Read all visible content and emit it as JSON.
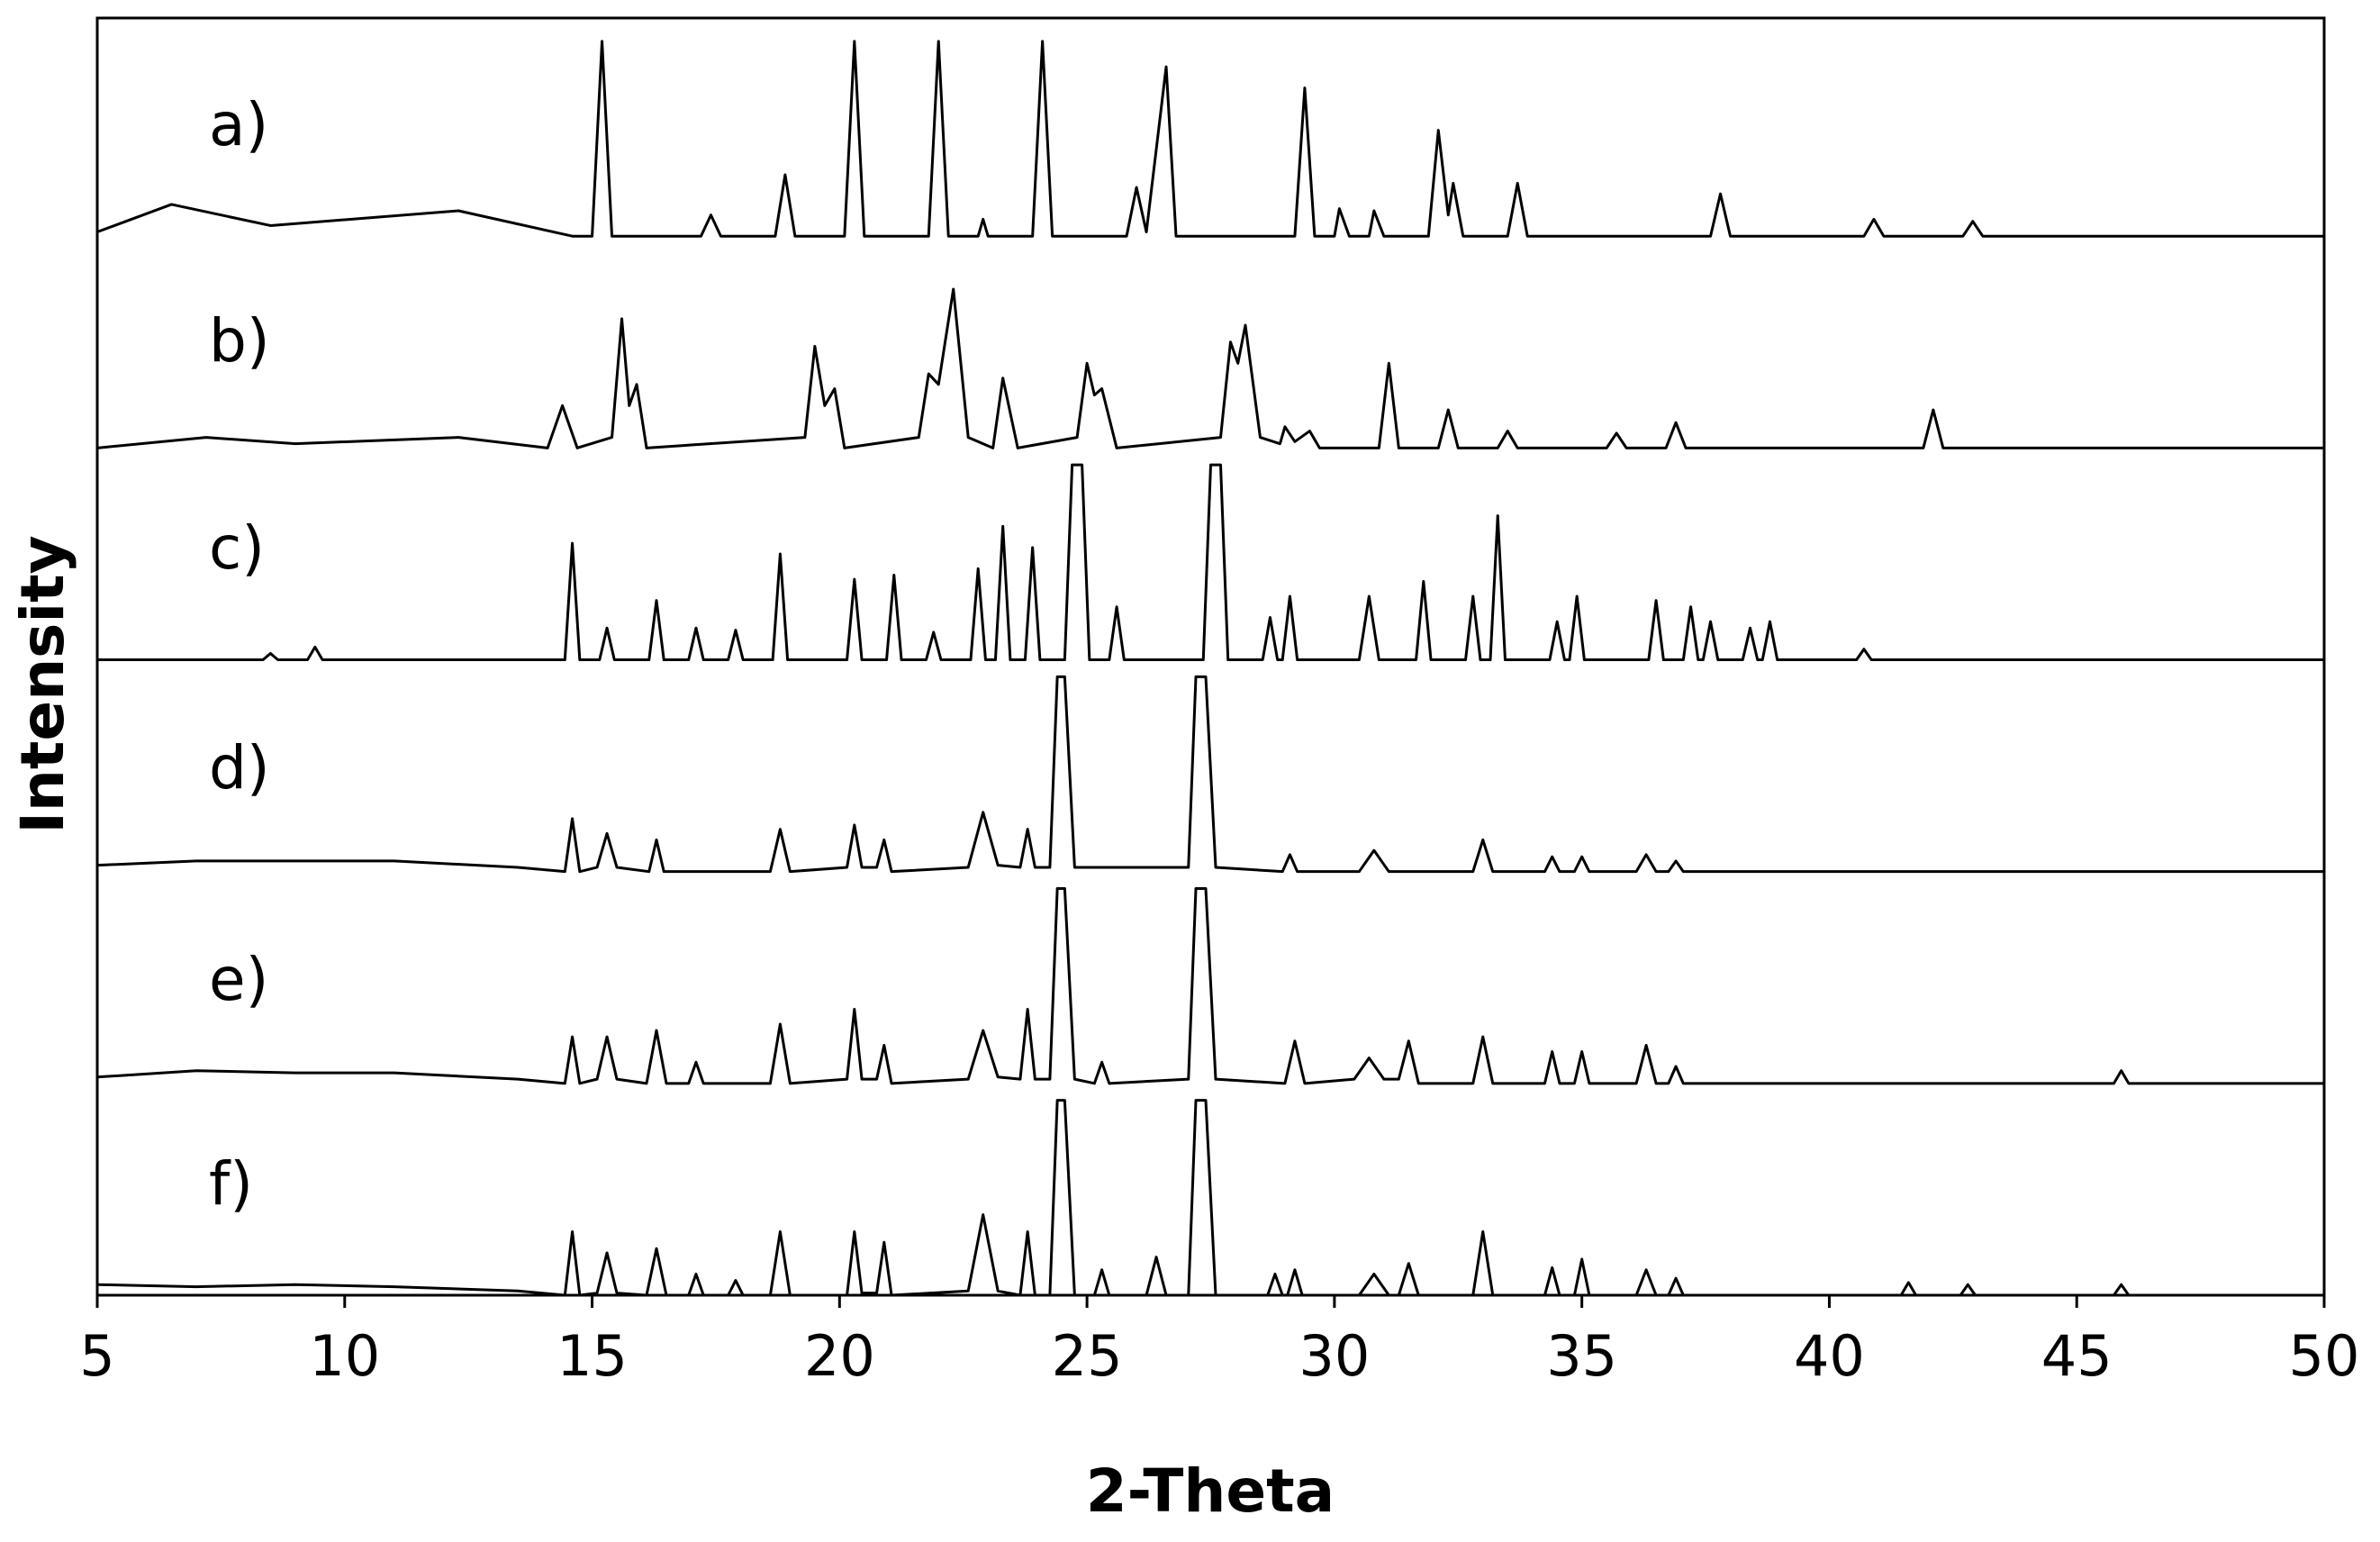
{
  "chart_data": {
    "type": "line",
    "x_label": "2-Theta",
    "y_label": "Intensity",
    "xlim": [
      5,
      50
    ],
    "xticks": [
      5,
      10,
      15,
      20,
      25,
      30,
      35,
      40,
      45,
      50
    ],
    "ylim": [
      0,
      6.03
    ],
    "series": [
      {
        "name": "a)",
        "color": "#000000",
        "x": [
          5,
          6.5,
          8.5,
          12.3,
          14.6,
          15.0,
          15.2,
          15.4,
          17.2,
          17.4,
          17.6,
          18.7,
          18.9,
          19.1,
          20.1,
          20.3,
          20.5,
          21.8,
          22.0,
          22.2,
          22.8,
          22.9,
          23.0,
          23.9,
          24.1,
          24.3,
          25.8,
          26.0,
          26.2,
          26.6,
          26.8,
          29.2,
          29.4,
          29.6,
          30.0,
          30.1,
          30.3,
          30.7,
          30.8,
          31.0,
          31.9,
          32.1,
          32.3,
          32.4,
          32.6,
          33.5,
          33.7,
          33.9,
          37.6,
          37.8,
          38.0,
          40.7,
          40.9,
          41.1,
          42.7,
          42.9,
          43.1,
          50
        ],
        "values": [
          5.02,
          5.15,
          5.05,
          5.12,
          5.0,
          5.0,
          5.92,
          5.0,
          5.0,
          5.1,
          5.0,
          5.0,
          5.29,
          5.0,
          5.0,
          5.92,
          5.0,
          5.0,
          5.92,
          5.0,
          5.0,
          5.08,
          5.0,
          5.0,
          5.92,
          5.0,
          5.0,
          5.23,
          5.02,
          5.8,
          5.0,
          5.0,
          5.7,
          5.0,
          5.0,
          5.13,
          5.0,
          5.0,
          5.12,
          5.0,
          5.0,
          5.5,
          5.1,
          5.25,
          5.0,
          5.0,
          5.25,
          5.0,
          5.0,
          5.2,
          5.0,
          5.0,
          5.08,
          5.0,
          5.0,
          5.07,
          5.0,
          5.0
        ]
      },
      {
        "name": "b)",
        "color": "#000000",
        "x": [
          5,
          7.2,
          9,
          12.3,
          14.1,
          14.4,
          14.7,
          15.4,
          15.6,
          15.75,
          15.9,
          16.1,
          19.3,
          19.5,
          19.7,
          19.9,
          20.1,
          21.6,
          21.8,
          22.0,
          22.3,
          22.6,
          23.1,
          23.3,
          23.6,
          24.8,
          25.0,
          25.15,
          25.3,
          25.6,
          27.7,
          27.9,
          28.05,
          28.2,
          28.5,
          28.9,
          29.0,
          29.2,
          29.5,
          29.7,
          30.9,
          31.1,
          31.3,
          32.1,
          32.3,
          32.5,
          33.3,
          33.5,
          33.7,
          35.5,
          35.7,
          35.9,
          36.7,
          36.9,
          37.1,
          41.9,
          42.1,
          42.3,
          50
        ],
        "values": [
          4.0,
          4.05,
          4.02,
          4.05,
          4.0,
          4.2,
          4.0,
          4.05,
          4.61,
          4.2,
          4.3,
          4.0,
          4.05,
          4.48,
          4.2,
          4.28,
          4.0,
          4.05,
          4.35,
          4.3,
          4.75,
          4.05,
          4.0,
          4.33,
          4.0,
          4.05,
          4.4,
          4.25,
          4.28,
          4.0,
          4.05,
          4.5,
          4.4,
          4.58,
          4.05,
          4.02,
          4.1,
          4.03,
          4.08,
          4.0,
          4.0,
          4.4,
          4.0,
          4.0,
          4.18,
          4.0,
          4.0,
          4.08,
          4.0,
          4.0,
          4.07,
          4.0,
          4.0,
          4.12,
          4.0,
          4.0,
          4.18,
          4.0,
          4.0
        ]
      },
      {
        "name": "c)",
        "color": "#000000",
        "x": [
          5,
          8.35,
          8.5,
          8.65,
          9.25,
          9.4,
          9.55,
          14.45,
          14.6,
          14.75,
          15.15,
          15.3,
          15.45,
          16.15,
          16.3,
          16.45,
          16.95,
          17.1,
          17.25,
          17.75,
          17.9,
          18.05,
          18.65,
          18.8,
          18.95,
          20.15,
          20.3,
          20.45,
          20.95,
          21.1,
          21.25,
          21.75,
          21.9,
          22.05,
          22.65,
          22.8,
          22.95,
          23.15,
          23.3,
          23.45,
          23.75,
          23.9,
          24.05,
          24.55,
          24.7,
          24.9,
          25.05,
          25.45,
          25.6,
          25.75,
          27.35,
          27.5,
          27.7,
          27.85,
          28.55,
          28.7,
          28.85,
          28.95,
          29.1,
          29.25,
          30.5,
          30.7,
          30.9,
          31.65,
          31.8,
          31.95,
          32.65,
          32.8,
          32.95,
          33.15,
          33.3,
          33.45,
          34.35,
          34.5,
          34.65,
          34.75,
          34.9,
          35.05,
          36.35,
          36.5,
          36.65,
          37.05,
          37.2,
          37.35,
          37.45,
          37.6,
          37.75,
          38.25,
          38.4,
          38.55,
          38.65,
          38.8,
          38.95,
          40.55,
          40.7,
          40.85,
          50
        ],
        "values": [
          3,
          3,
          3.03,
          3,
          3,
          3.06,
          3,
          3,
          3.55,
          3,
          3,
          3.15,
          3,
          3,
          3.28,
          3,
          3,
          3.15,
          3,
          3,
          3.14,
          3,
          3,
          3.5,
          3,
          3,
          3.38,
          3,
          3,
          3.4,
          3,
          3,
          3.13,
          3,
          3,
          3.43,
          3,
          3,
          3.63,
          3,
          3,
          3.53,
          3,
          3,
          3.92,
          3.92,
          3,
          3,
          3.25,
          3,
          3,
          3.92,
          3.92,
          3,
          3,
          3.2,
          3,
          3,
          3.3,
          3,
          3,
          3.3,
          3,
          3,
          3.37,
          3,
          3,
          3.3,
          3,
          3,
          3.68,
          3,
          3,
          3.18,
          3,
          3,
          3.3,
          3,
          3,
          3.28,
          3,
          3,
          3.25,
          3,
          3,
          3.18,
          3,
          3,
          3.15,
          3,
          3,
          3.18,
          3,
          3,
          3.05,
          3,
          3
        ]
      },
      {
        "name": "d)",
        "color": "#000000",
        "x": [
          5,
          7,
          9,
          11,
          13.5,
          14.45,
          14.6,
          14.75,
          15.1,
          15.3,
          15.5,
          16.15,
          16.3,
          16.45,
          18.6,
          18.8,
          19.0,
          20.15,
          20.3,
          20.45,
          20.75,
          20.9,
          21.05,
          22.6,
          22.9,
          23.2,
          23.65,
          23.8,
          23.95,
          24.25,
          24.4,
          24.55,
          24.75,
          27.05,
          27.2,
          27.4,
          27.6,
          28.95,
          29.1,
          29.25,
          30.5,
          30.8,
          31.1,
          32.8,
          33.0,
          33.2,
          34.25,
          34.4,
          34.55,
          34.85,
          35.0,
          35.15,
          36.1,
          36.3,
          36.5,
          36.75,
          36.9,
          37.05,
          50
        ],
        "values": [
          2.03,
          2.05,
          2.05,
          2.05,
          2.02,
          2,
          2.25,
          2,
          2.02,
          2.18,
          2.02,
          2,
          2.15,
          2,
          2,
          2.2,
          2,
          2.02,
          2.22,
          2.02,
          2.02,
          2.15,
          2,
          2.02,
          2.28,
          2.03,
          2.02,
          2.2,
          2.02,
          2.02,
          2.92,
          2.92,
          2.02,
          2.02,
          2.92,
          2.92,
          2.02,
          2,
          2.08,
          2,
          2,
          2.1,
          2,
          2,
          2.15,
          2,
          2,
          2.07,
          2,
          2,
          2.07,
          2,
          2,
          2.08,
          2,
          2,
          2.05,
          2,
          2
        ]
      },
      {
        "name": "e)",
        "color": "#000000",
        "x": [
          5,
          7,
          9,
          11,
          13.5,
          14.45,
          14.6,
          14.75,
          15.1,
          15.3,
          15.5,
          16.1,
          16.3,
          16.5,
          16.95,
          17.1,
          17.25,
          18.6,
          18.8,
          19.0,
          20.15,
          20.3,
          20.45,
          20.75,
          20.9,
          21.05,
          22.6,
          22.9,
          23.2,
          23.65,
          23.8,
          23.95,
          24.25,
          24.4,
          24.55,
          24.75,
          25.15,
          25.3,
          25.45,
          27.05,
          27.2,
          27.4,
          27.6,
          29.0,
          29.2,
          29.4,
          30.4,
          30.7,
          31.0,
          31.3,
          31.5,
          31.7,
          32.8,
          33.0,
          33.2,
          34.25,
          34.4,
          34.55,
          34.85,
          35.0,
          35.15,
          36.1,
          36.3,
          36.5,
          36.75,
          36.9,
          37.05,
          45.75,
          45.9,
          46.05,
          50
        ],
        "values": [
          1.03,
          1.06,
          1.05,
          1.05,
          1.02,
          1,
          1.22,
          1,
          1.02,
          1.22,
          1.02,
          1,
          1.25,
          1,
          1,
          1.1,
          1,
          1,
          1.28,
          1,
          1.02,
          1.35,
          1.02,
          1.02,
          1.18,
          1,
          1.02,
          1.25,
          1.03,
          1.02,
          1.35,
          1.02,
          1.02,
          1.92,
          1.92,
          1.02,
          1,
          1.1,
          1,
          1.02,
          1.92,
          1.92,
          1.02,
          1,
          1.2,
          1,
          1.02,
          1.12,
          1.02,
          1.02,
          1.2,
          1,
          1,
          1.22,
          1,
          1,
          1.15,
          1,
          1,
          1.15,
          1,
          1,
          1.18,
          1,
          1,
          1.08,
          1,
          1,
          1.06,
          1,
          1
        ]
      },
      {
        "name": "f)",
        "color": "#000000",
        "x": [
          5,
          7,
          9,
          11,
          13.5,
          14.45,
          14.6,
          14.75,
          15.1,
          15.3,
          15.5,
          16.1,
          16.3,
          16.5,
          16.95,
          17.1,
          17.25,
          17.75,
          17.9,
          18.05,
          18.6,
          18.8,
          19.0,
          20.15,
          20.3,
          20.45,
          20.75,
          20.9,
          21.05,
          22.6,
          22.9,
          23.2,
          23.65,
          23.8,
          23.95,
          24.25,
          24.4,
          24.55,
          24.75,
          25.15,
          25.3,
          25.45,
          26.2,
          26.4,
          26.6,
          27.05,
          27.2,
          27.4,
          27.6,
          28.65,
          28.8,
          28.95,
          29.05,
          29.2,
          29.35,
          30.5,
          30.8,
          31.1,
          31.3,
          31.5,
          31.7,
          32.8,
          33.0,
          33.2,
          34.25,
          34.4,
          34.55,
          34.85,
          35.0,
          35.15,
          36.1,
          36.3,
          36.5,
          36.75,
          36.9,
          37.05,
          41.45,
          41.6,
          41.75,
          42.65,
          42.8,
          42.95,
          45.75,
          45.9,
          46.05,
          50
        ],
        "values": [
          0.05,
          0.04,
          0.05,
          0.04,
          0.02,
          0,
          0.3,
          0,
          0.01,
          0.2,
          0.01,
          0,
          0.22,
          0,
          0,
          0.1,
          0,
          0,
          0.07,
          0,
          0,
          0.3,
          0,
          0,
          0.3,
          0.01,
          0.01,
          0.25,
          0,
          0.02,
          0.38,
          0.02,
          0,
          0.3,
          0,
          0,
          0.92,
          0.92,
          0,
          0,
          0.12,
          0,
          0,
          0.18,
          0,
          0,
          0.92,
          0.92,
          0,
          0,
          0.1,
          0,
          0,
          0.12,
          0,
          0,
          0.1,
          0,
          0,
          0.15,
          0,
          0,
          0.3,
          0,
          0,
          0.13,
          0,
          0,
          0.17,
          0,
          0,
          0.12,
          0,
          0,
          0.08,
          0,
          0,
          0.06,
          0,
          0,
          0.05,
          0,
          0,
          0.05,
          0,
          0
        ]
      }
    ]
  }
}
